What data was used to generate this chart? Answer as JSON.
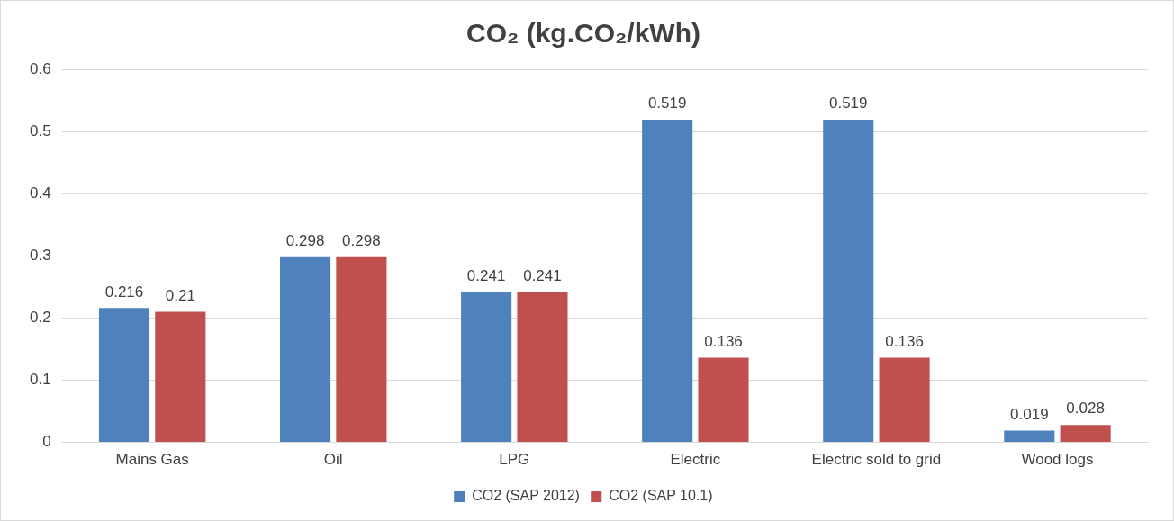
{
  "chart_data": {
    "type": "bar",
    "title": "CO₂ (kg.CO₂/kWh)",
    "categories": [
      "Mains Gas",
      "Oil",
      "LPG",
      "Electric",
      "Electric sold to grid",
      "Wood logs"
    ],
    "series": [
      {
        "name": "CO2 (SAP 2012)",
        "color": "#4f81bd",
        "values": [
          0.216,
          0.298,
          0.241,
          0.519,
          0.519,
          0.019
        ]
      },
      {
        "name": "CO2 (SAP 10.1)",
        "color": "#c0504d",
        "values": [
          0.21,
          0.298,
          0.241,
          0.136,
          0.136,
          0.028
        ]
      }
    ],
    "ylim": [
      0,
      0.6
    ],
    "yticks": [
      0,
      0.1,
      0.2,
      0.3,
      0.4,
      0.5,
      0.6
    ],
    "grid": "y",
    "legend": "bottom",
    "data_labels": true
  }
}
